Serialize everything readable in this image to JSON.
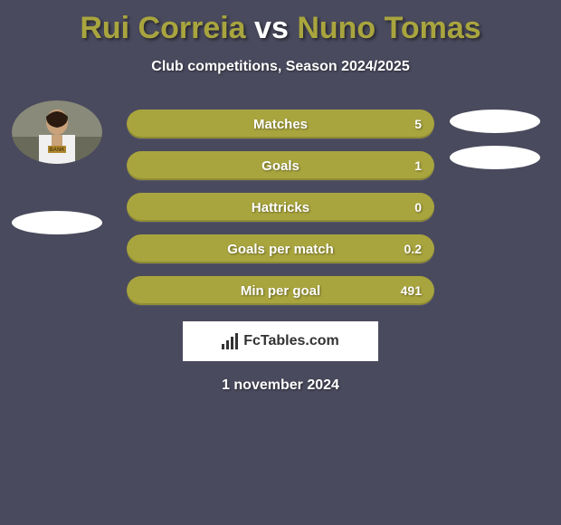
{
  "title": {
    "player1": "Rui Correia",
    "vs": "vs",
    "player2": "Nuno Tomas",
    "player1_color": "#a9a53e",
    "vs_color": "#ffffff",
    "player2_color": "#a9a53e"
  },
  "subtitle": "Club competitions, Season 2024/2025",
  "bar_color": "#a9a53e",
  "background_color": "#4a4a5e",
  "stats": [
    {
      "label": "Matches",
      "value": "5"
    },
    {
      "label": "Goals",
      "value": "1"
    },
    {
      "label": "Hattricks",
      "value": "0"
    },
    {
      "label": "Goals per match",
      "value": "0.2"
    },
    {
      "label": "Min per goal",
      "value": "491"
    }
  ],
  "brand": "FcTables.com",
  "date": "1 november 2024",
  "left_ellipses": 1,
  "right_ellipses": 2
}
